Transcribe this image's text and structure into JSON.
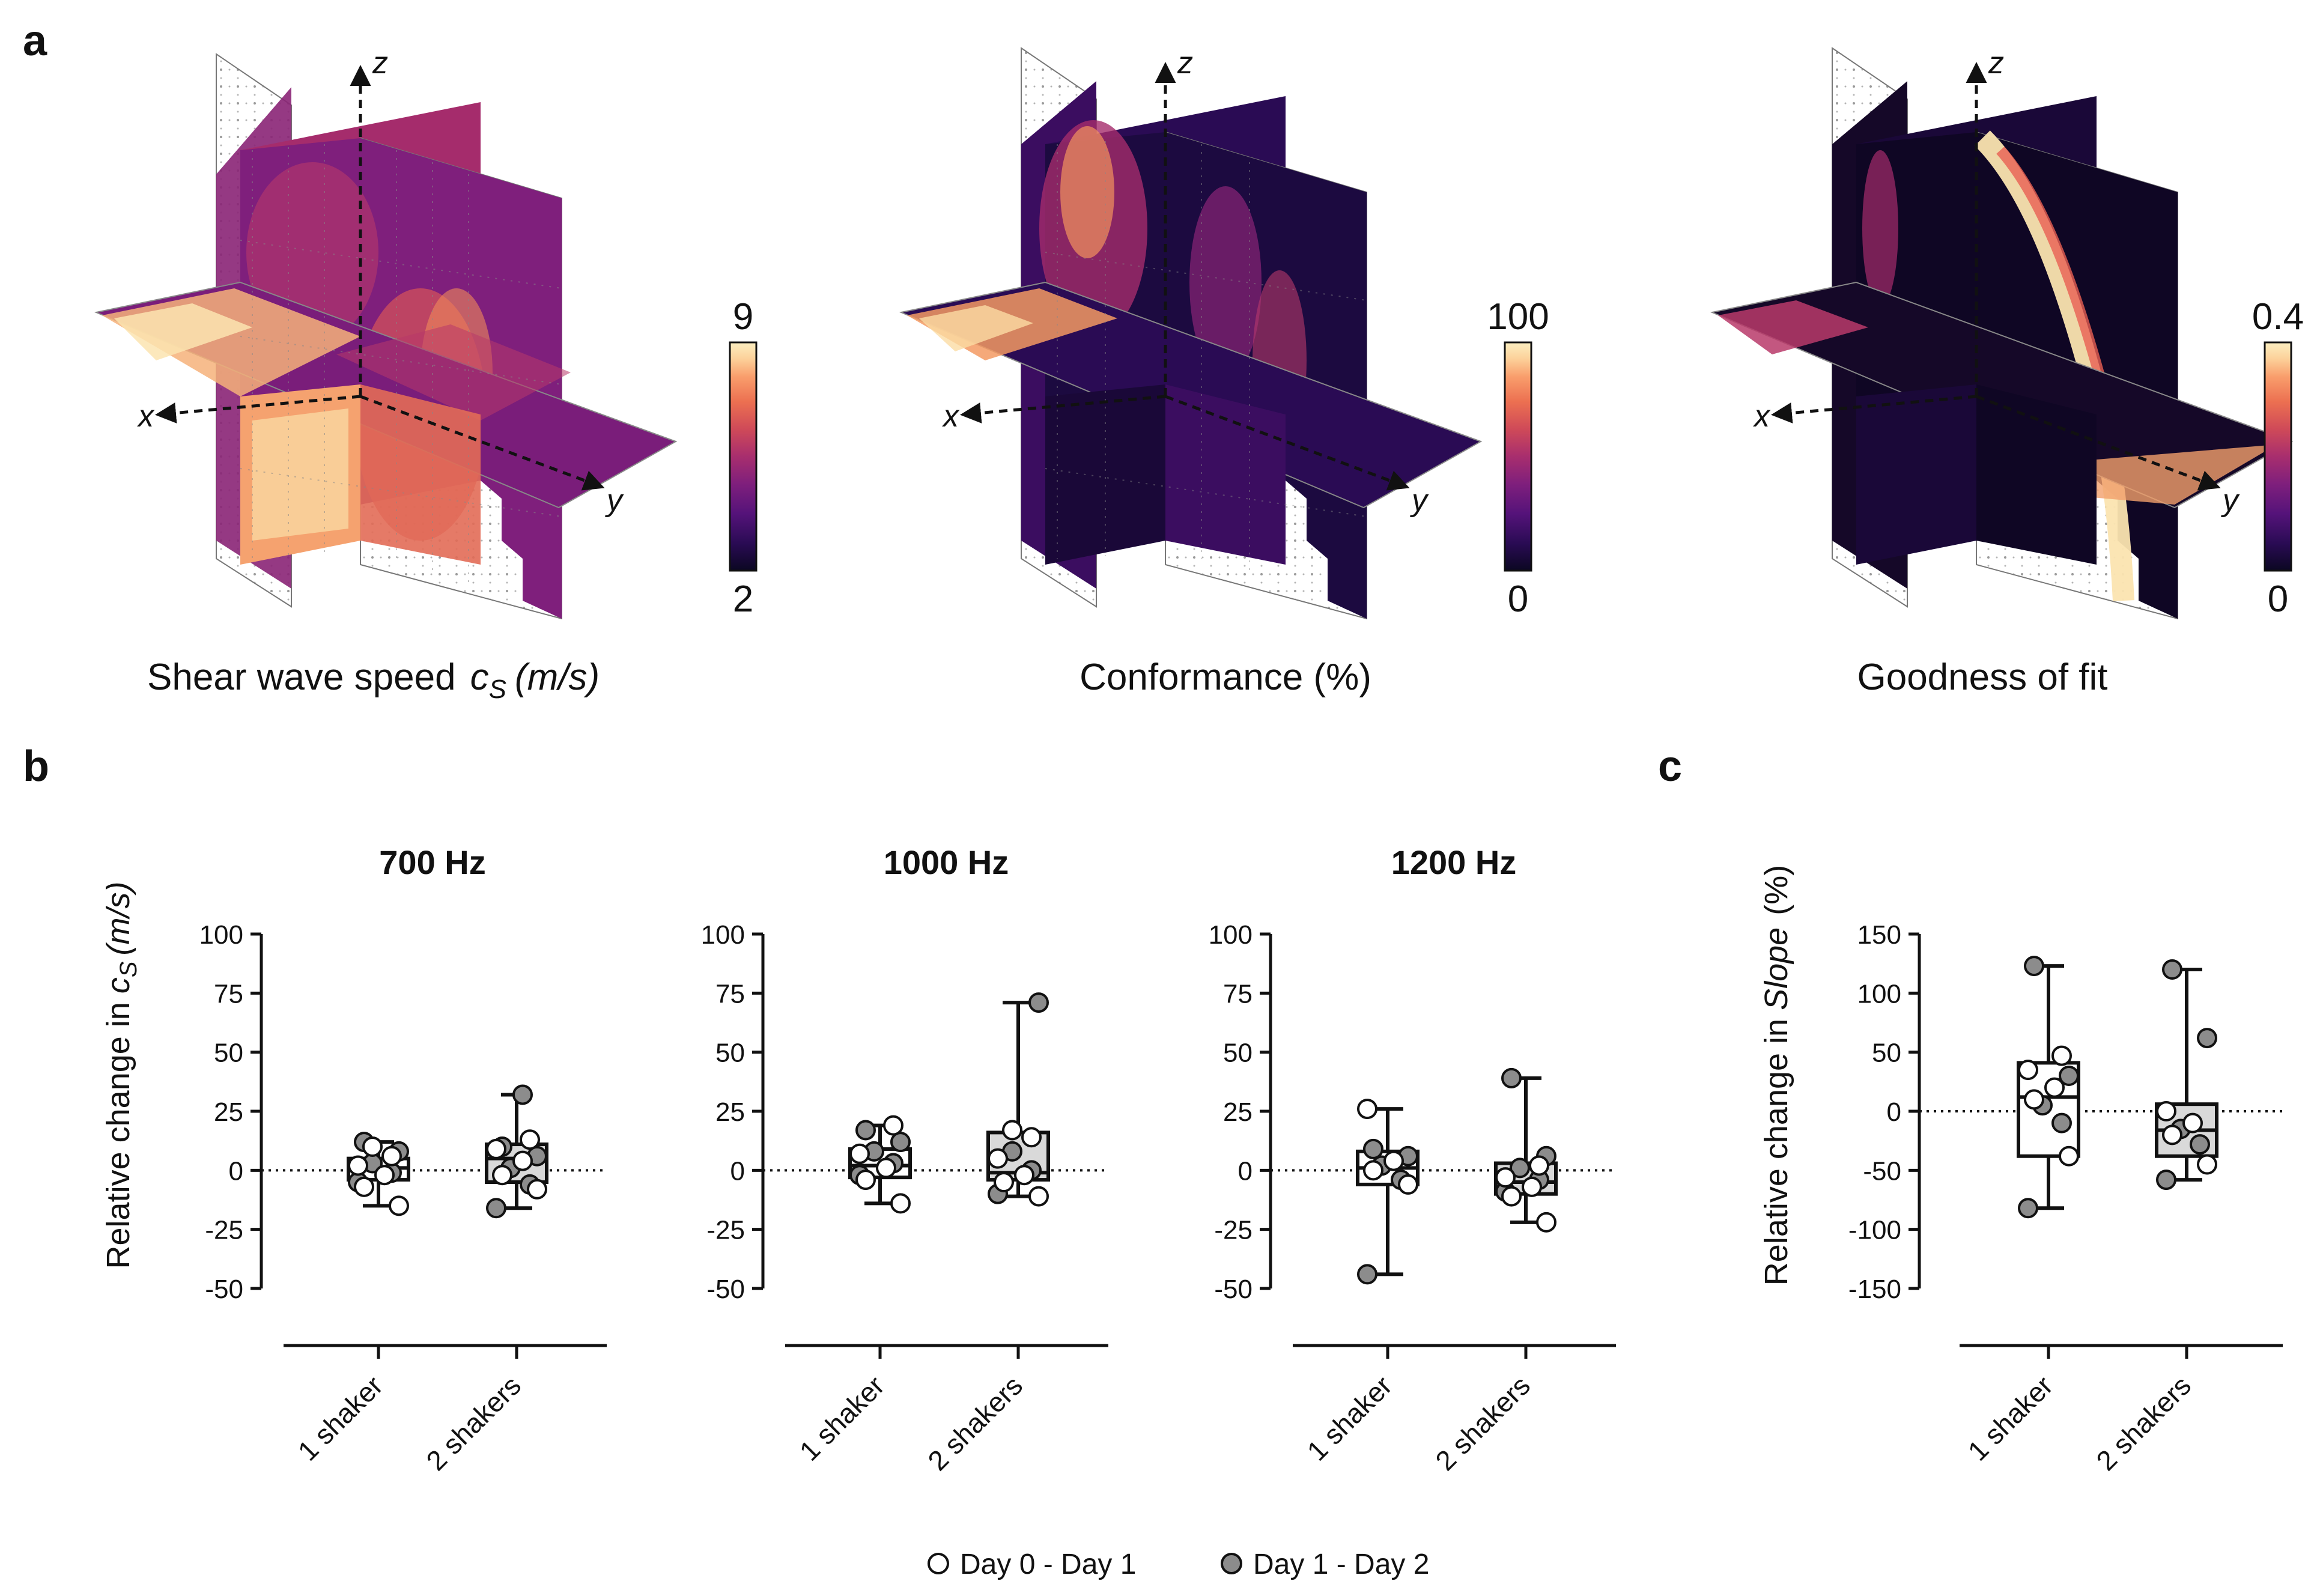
{
  "panel_labels": {
    "a": "a",
    "b": "b",
    "c": "c"
  },
  "panel_a": {
    "maps": [
      {
        "title": "Shear wave speed",
        "symbol": "c",
        "subscript": "S",
        "unit": "(m/s)",
        "colorbar_max": "9",
        "colorbar_min": "2",
        "axis_x": "x",
        "axis_y": "y",
        "axis_z": "z",
        "style": "speed"
      },
      {
        "title": "Conformance (%)",
        "symbol": "",
        "subscript": "",
        "unit": "",
        "colorbar_max": "100",
        "colorbar_min": "0",
        "axis_x": "x",
        "axis_y": "y",
        "axis_z": "z",
        "style": "conformance"
      },
      {
        "title": "Goodness of fit",
        "symbol": "",
        "subscript": "",
        "unit": "",
        "colorbar_max": "0.4",
        "colorbar_min": "0",
        "axis_x": "x",
        "axis_y": "y",
        "axis_z": "z",
        "style": "fit"
      }
    ],
    "colormap": [
      "#0b0722",
      "#2a0b54",
      "#55137a",
      "#7f1f7c",
      "#a82e6e",
      "#cf4a58",
      "#ec7051",
      "#f99e6c",
      "#fcd29b",
      "#fbeec0"
    ]
  },
  "chart_data": [
    {
      "type": "box",
      "panel": "b",
      "title": "700 Hz",
      "categories": [
        "1 shaker",
        "2 shakers"
      ],
      "ylabel_prefix": "Relative change in",
      "ylabel_symbol": "c",
      "ylabel_sub": "S",
      "ylabel_unit": "(m/s)",
      "ylim": [
        -50,
        100
      ],
      "yticks": [
        "100",
        "75",
        "50",
        "25",
        "0",
        "-25",
        "-50"
      ],
      "boxes": [
        {
          "min": -15,
          "q1": -4,
          "median": 1,
          "q3": 5,
          "max": 12,
          "fill": "#ffffff",
          "day0_day1": [
            -15,
            -7,
            -2,
            2,
            6,
            10
          ],
          "day1_day2": [
            -5,
            -1,
            3,
            8,
            12
          ]
        },
        {
          "min": -16,
          "q1": -5,
          "median": 5,
          "q3": 11,
          "max": 32,
          "fill": "#d9d9d9",
          "day0_day1": [
            -8,
            -2,
            4,
            9,
            13
          ],
          "day1_day2": [
            -16,
            -6,
            1,
            6,
            10,
            32
          ]
        }
      ]
    },
    {
      "type": "box",
      "panel": "b",
      "title": "1000 Hz",
      "categories": [
        "1 shaker",
        "2 shakers"
      ],
      "ylim": [
        -50,
        100
      ],
      "yticks": [
        "100",
        "75",
        "50",
        "25",
        "0",
        "-25",
        "-50"
      ],
      "boxes": [
        {
          "min": -14,
          "q1": -3,
          "median": 2,
          "q3": 9,
          "max": 19,
          "fill": "#ffffff",
          "day0_day1": [
            -14,
            -4,
            1,
            7,
            19
          ],
          "day1_day2": [
            -2,
            3,
            8,
            12,
            17
          ]
        },
        {
          "min": -11,
          "q1": -4,
          "median": -1,
          "q3": 16,
          "max": 71,
          "fill": "#d9d9d9",
          "day0_day1": [
            -11,
            -5,
            -2,
            5,
            14,
            17
          ],
          "day1_day2": [
            -10,
            0,
            8,
            71
          ]
        }
      ]
    },
    {
      "type": "box",
      "panel": "b",
      "title": "1200 Hz",
      "categories": [
        "1 shaker",
        "2 shakers"
      ],
      "ylim": [
        -50,
        100
      ],
      "yticks": [
        "100",
        "75",
        "50",
        "25",
        "0",
        "-25",
        "-50"
      ],
      "boxes": [
        {
          "min": -44,
          "q1": -6,
          "median": 1,
          "q3": 8,
          "max": 26,
          "fill": "#ffffff",
          "day0_day1": [
            -6,
            0,
            4,
            26
          ],
          "day1_day2": [
            -44,
            -4,
            2,
            6,
            9
          ]
        },
        {
          "min": -22,
          "q1": -10,
          "median": -5,
          "q3": 3,
          "max": 39,
          "fill": "#d9d9d9",
          "day0_day1": [
            -22,
            -11,
            -7,
            -3,
            2
          ],
          "day1_day2": [
            -9,
            -4,
            1,
            6,
            39
          ]
        }
      ]
    },
    {
      "type": "box",
      "panel": "c",
      "title": "",
      "categories": [
        "1 shaker",
        "2 shakers"
      ],
      "ylabel_prefix": "Relative change in",
      "ylabel_symbol": "Slope",
      "ylabel_unit": "(%)",
      "ylim": [
        -150,
        150
      ],
      "yticks": [
        "150",
        "100",
        "50",
        "0",
        "-50",
        "-100",
        "-150"
      ],
      "boxes": [
        {
          "min": -82,
          "q1": -38,
          "median": 12,
          "q3": 41,
          "max": 123,
          "fill": "#ffffff",
          "day0_day1": [
            -38,
            10,
            20,
            35,
            47
          ],
          "day1_day2": [
            -82,
            -10,
            5,
            30,
            123
          ]
        },
        {
          "min": -58,
          "q1": -38,
          "median": -16,
          "q3": 6,
          "max": 120,
          "fill": "#d9d9d9",
          "day0_day1": [
            -45,
            -20,
            -10,
            0
          ],
          "day1_day2": [
            -58,
            -28,
            -15,
            62,
            120
          ]
        }
      ]
    }
  ],
  "legend": {
    "open": "Day 0 - Day 1",
    "filled": "Day 1 - Day 2"
  }
}
